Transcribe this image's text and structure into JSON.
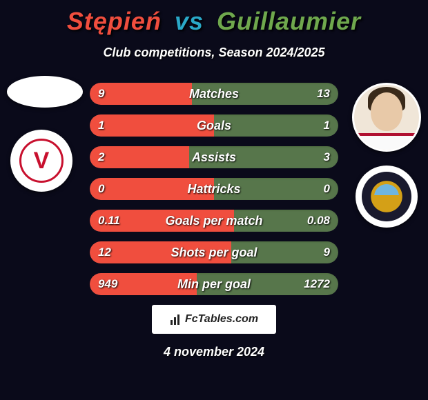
{
  "header": {
    "player1": "Stępień",
    "vs": "vs",
    "player2": "Guillaumier",
    "subtitle": "Club competitions, Season 2024/2025",
    "player1_color": "#f04e3e",
    "vs_color": "#2aa8c8",
    "player2_color": "#6fa84d"
  },
  "stats": {
    "bar_left_color": "#f04e3e",
    "bar_right_color": "#6fa84d",
    "row_bg": "#3a3a4a",
    "rows": [
      {
        "label": "Matches",
        "left": "9",
        "right": "13",
        "lw": 41,
        "rw": 59
      },
      {
        "label": "Goals",
        "left": "1",
        "right": "1",
        "lw": 50,
        "rw": 50
      },
      {
        "label": "Assists",
        "left": "2",
        "right": "3",
        "lw": 40,
        "rw": 60
      },
      {
        "label": "Hattricks",
        "left": "0",
        "right": "0",
        "lw": 50,
        "rw": 50
      },
      {
        "label": "Goals per match",
        "left": "0.11",
        "right": "0.08",
        "lw": 58,
        "rw": 42
      },
      {
        "label": "Shots per goal",
        "left": "12",
        "right": "9",
        "lw": 57,
        "rw": 43
      },
      {
        "label": "Min per goal",
        "left": "949",
        "right": "1272",
        "lw": 43,
        "rw": 57
      }
    ]
  },
  "branding": {
    "text": "FcTables.com"
  },
  "footer": {
    "date": "4 november 2024"
  },
  "clubs": {
    "club1_letter": "V"
  }
}
